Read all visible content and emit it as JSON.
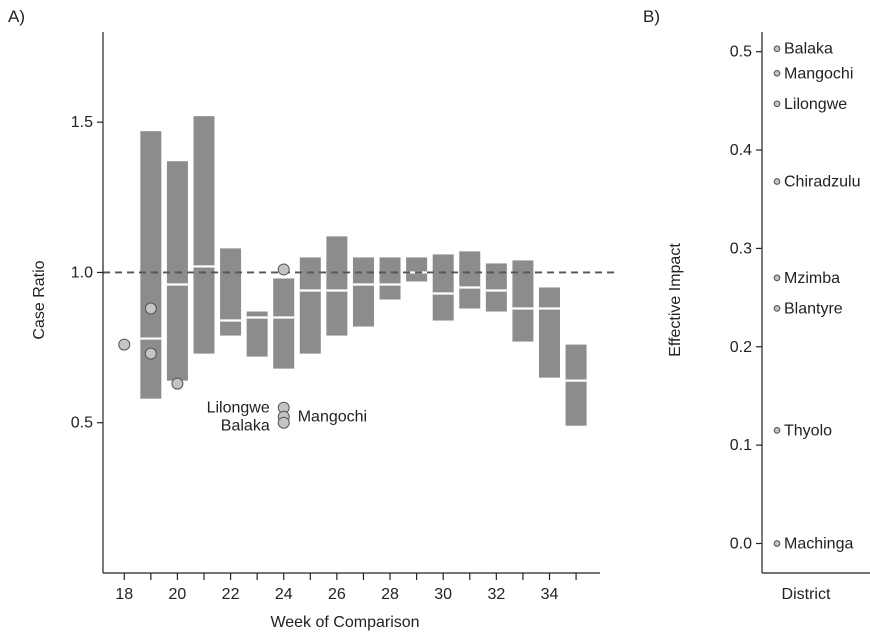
{
  "colors": {
    "box": "#8c8c8c",
    "median": "#ffffff",
    "point_fill": "#c4c4c4",
    "point_stroke": "#555555",
    "axis": "#222222",
    "reference_line": "#555555"
  },
  "chart_data": [
    {
      "type": "box",
      "panel_label": "A)",
      "xlabel": "Week of Comparison",
      "ylabel": "Case Ratio",
      "xlim": [
        17.2,
        35.9
      ],
      "ylim": [
        0.0,
        1.8
      ],
      "x_ticks": [
        18,
        19,
        20,
        21,
        22,
        23,
        24,
        25,
        26,
        27,
        28,
        29,
        30,
        31,
        32,
        33,
        34,
        35
      ],
      "x_tick_labels": [
        "18",
        "20",
        "22",
        "24",
        "26",
        "28",
        "30",
        "32",
        "34"
      ],
      "x_tick_label_values": [
        18,
        20,
        22,
        24,
        26,
        28,
        30,
        32,
        34
      ],
      "y_ticks": [
        0.5,
        1.0,
        1.5
      ],
      "y_tick_labels": [
        "0.5",
        "1.0",
        "1.5"
      ],
      "reference_line": {
        "y": 1.0,
        "style": "dashed"
      },
      "boxes": [
        {
          "x": 19,
          "low": 0.58,
          "median": 0.78,
          "high": 1.47
        },
        {
          "x": 20,
          "low": 0.64,
          "median": 0.96,
          "high": 1.37
        },
        {
          "x": 21,
          "low": 0.73,
          "median": 1.02,
          "high": 1.52
        },
        {
          "x": 22,
          "low": 0.79,
          "median": 0.84,
          "high": 1.08
        },
        {
          "x": 23,
          "low": 0.72,
          "median": 0.85,
          "high": 0.87
        },
        {
          "x": 24,
          "low": 0.68,
          "median": 0.85,
          "high": 0.98
        },
        {
          "x": 25,
          "low": 0.73,
          "median": 0.94,
          "high": 1.05
        },
        {
          "x": 26,
          "low": 0.79,
          "median": 0.94,
          "high": 1.12
        },
        {
          "x": 27,
          "low": 0.82,
          "median": 0.96,
          "high": 1.05
        },
        {
          "x": 28,
          "low": 0.91,
          "median": 0.96,
          "high": 1.05
        },
        {
          "x": 29,
          "low": 0.97,
          "median": 1.0,
          "high": 1.05
        },
        {
          "x": 30,
          "low": 0.84,
          "median": 0.93,
          "high": 1.06
        },
        {
          "x": 31,
          "low": 0.88,
          "median": 0.95,
          "high": 1.07
        },
        {
          "x": 32,
          "low": 0.87,
          "median": 0.94,
          "high": 1.03
        },
        {
          "x": 33,
          "low": 0.77,
          "median": 0.88,
          "high": 1.04
        },
        {
          "x": 34,
          "low": 0.65,
          "median": 0.88,
          "high": 0.95
        },
        {
          "x": 35,
          "low": 0.49,
          "median": 0.64,
          "high": 0.76
        }
      ],
      "outliers": [
        {
          "x": 18,
          "y": 0.76
        },
        {
          "x": 19,
          "y": 0.88
        },
        {
          "x": 19,
          "y": 0.73
        },
        {
          "x": 20,
          "y": 0.63
        },
        {
          "x": 24,
          "y": 1.01
        },
        {
          "x": 24,
          "y": 0.55
        },
        {
          "x": 24,
          "y": 0.52
        },
        {
          "x": 24,
          "y": 0.5
        }
      ],
      "annotations": [
        {
          "text": "Lilongwe",
          "x": 24,
          "y": 0.55,
          "side": "left"
        },
        {
          "text": "Balaka",
          "x": 24,
          "y": 0.49,
          "side": "left"
        },
        {
          "text": "Mangochi",
          "x": 24,
          "y": 0.52,
          "side": "right"
        }
      ]
    },
    {
      "type": "scatter",
      "panel_label": "B)",
      "xlabel": "District",
      "ylabel": "Effective Impact",
      "ylim": [
        -0.03,
        0.52
      ],
      "y_ticks": [
        0.0,
        0.1,
        0.2,
        0.3,
        0.4,
        0.5
      ],
      "y_tick_labels": [
        "0.0",
        "0.1",
        "0.2",
        "0.3",
        "0.4",
        "0.5"
      ],
      "points": [
        {
          "label": "Balaka",
          "y": 0.503
        },
        {
          "label": "Mangochi",
          "y": 0.478
        },
        {
          "label": "Lilongwe",
          "y": 0.447
        },
        {
          "label": "Chiradzulu",
          "y": 0.368
        },
        {
          "label": "Mzimba",
          "y": 0.27
        },
        {
          "label": "Blantyre",
          "y": 0.239
        },
        {
          "label": "Thyolo",
          "y": 0.115
        },
        {
          "label": "Machinga",
          "y": 0.0
        }
      ]
    }
  ]
}
